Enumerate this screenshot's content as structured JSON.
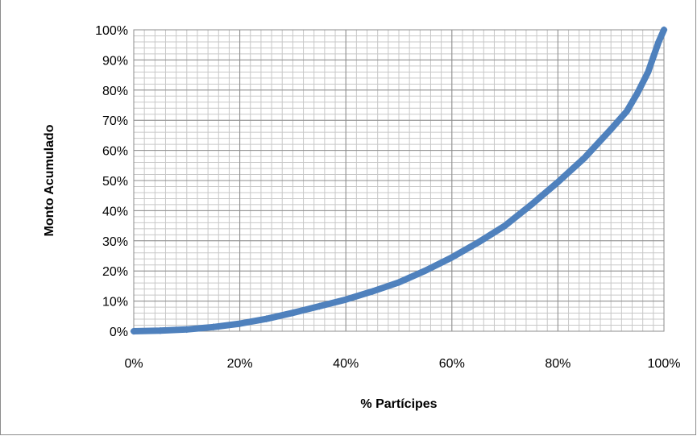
{
  "chart_data": {
    "type": "line",
    "title": "",
    "xlabel": "% Partícipes",
    "ylabel": "Monto Acumulado",
    "xlim": [
      0,
      100
    ],
    "ylim": [
      0,
      100
    ],
    "x_ticks": [
      "0%",
      "20%",
      "40%",
      "60%",
      "80%",
      "100%"
    ],
    "y_ticks": [
      "0%",
      "10%",
      "20%",
      "30%",
      "40%",
      "50%",
      "60%",
      "70%",
      "80%",
      "90%",
      "100%"
    ],
    "grid": true,
    "legend": "none",
    "series": [
      {
        "color": "#4f81bd",
        "x": [
          0,
          5,
          10,
          15,
          20,
          25,
          30,
          35,
          40,
          45,
          50,
          55,
          60,
          65,
          70,
          75,
          80,
          85,
          90,
          93,
          95,
          97,
          98,
          99,
          100
        ],
        "y": [
          0,
          0.2,
          0.6,
          1.4,
          2.5,
          4.1,
          6.1,
          8.3,
          10.5,
          13.2,
          16.2,
          20.1,
          24.5,
          29.5,
          35,
          42,
          49.5,
          57.5,
          67,
          73,
          79,
          86,
          91,
          96,
          100
        ]
      }
    ]
  }
}
